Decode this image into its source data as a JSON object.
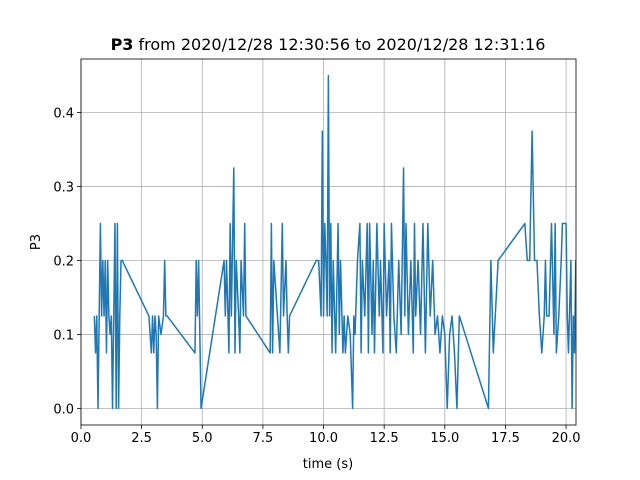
{
  "chart_data": {
    "type": "line",
    "title_parts": [
      {
        "text": "P3",
        "bold": true
      },
      {
        "text": " from 2020/12/28 12:30:56 to 2020/12/28 12:31:16",
        "bold": false
      }
    ],
    "xlabel": "time (s)",
    "ylabel": "P3",
    "xlim": [
      0,
      20.41
    ],
    "ylim": [
      -0.0225,
      0.4725
    ],
    "xticks": [
      {
        "value": 0,
        "label": "0.0"
      },
      2.5,
      {
        "value": 5,
        "label": "5.0"
      },
      7.5,
      {
        "value": 10,
        "label": "10.0"
      },
      12.5,
      {
        "value": 15,
        "label": "15.0"
      },
      17.5,
      {
        "value": 20,
        "label": "20.0"
      }
    ],
    "yticks": [
      {
        "value": 0,
        "label": "0.0"
      },
      0.1,
      0.2,
      0.3,
      0.4
    ],
    "grid": true,
    "series": [
      {
        "name": "P3",
        "color": "#1f77b4",
        "x": [
          0.55,
          0.6,
          0.65,
          0.7,
          0.75,
          0.8,
          0.85,
          0.9,
          0.95,
          1.0,
          1.05,
          1.1,
          1.15,
          1.2,
          1.25,
          1.3,
          1.35,
          1.4,
          1.45,
          1.5,
          1.55,
          1.6,
          1.65,
          1.7,
          2.8,
          2.9,
          2.95,
          3.0,
          3.05,
          3.1,
          3.15,
          3.2,
          3.3,
          3.4,
          3.45,
          3.5,
          3.55,
          4.7,
          4.75,
          4.8,
          4.85,
          4.95,
          5.9,
          5.95,
          6.0,
          6.1,
          6.15,
          6.2,
          6.3,
          6.35,
          6.4,
          6.5,
          6.55,
          6.6,
          6.7,
          6.75,
          6.8,
          7.8,
          7.85,
          7.9,
          7.95,
          8.2,
          8.3,
          8.35,
          8.45,
          8.5,
          8.55,
          8.6,
          9.7,
          9.8,
          9.9,
          9.95,
          10.0,
          10.05,
          10.1,
          10.15,
          10.2,
          10.25,
          10.3,
          10.35,
          10.4,
          10.5,
          10.6,
          10.65,
          10.7,
          10.8,
          10.85,
          10.9,
          11.0,
          11.1,
          11.2,
          11.25,
          11.3,
          11.4,
          11.5,
          11.55,
          11.6,
          11.7,
          11.8,
          11.85,
          11.9,
          12.0,
          12.05,
          12.1,
          12.2,
          12.3,
          12.35,
          12.45,
          12.5,
          12.6,
          12.7,
          12.75,
          12.8,
          12.9,
          13.0,
          13.1,
          13.2,
          13.3,
          13.35,
          13.4,
          13.5,
          13.6,
          13.7,
          13.75,
          13.8,
          13.9,
          14.0,
          14.1,
          14.2,
          14.3,
          14.4,
          14.5,
          14.6,
          14.7,
          14.8,
          14.9,
          15.0,
          15.1,
          15.2,
          15.3,
          15.4,
          15.5,
          15.6,
          16.8,
          16.9,
          17.0,
          17.2,
          18.3,
          18.4,
          18.5,
          18.6,
          18.7,
          18.8,
          18.9,
          19.0,
          19.1,
          19.15,
          19.2,
          19.3,
          19.4,
          19.5,
          19.55,
          19.6,
          19.7,
          19.8,
          19.85,
          19.9,
          20.0,
          20.05,
          20.1,
          20.2,
          20.25,
          20.3,
          20.35,
          20.4
        ],
        "values": [
          0.125,
          0.075,
          0.125,
          0.0,
          0.125,
          0.25,
          0.125,
          0.2,
          0.125,
          0.2,
          0.075,
          0.2,
          0.125,
          0.1,
          0.125,
          0.0,
          0.125,
          0.25,
          0.0,
          0.25,
          0.0,
          0.125,
          0.2,
          0.2,
          0.125,
          0.075,
          0.125,
          0.075,
          0.125,
          0.1,
          0.0,
          0.125,
          0.1,
          0.125,
          0.2,
          0.125,
          0.125,
          0.075,
          0.2,
          0.125,
          0.2,
          0.0,
          0.2,
          0.125,
          0.2,
          0.075,
          0.25,
          0.125,
          0.325,
          0.075,
          0.2,
          0.125,
          0.075,
          0.2,
          0.125,
          0.25,
          0.125,
          0.075,
          0.25,
          0.075,
          0.2,
          0.075,
          0.25,
          0.125,
          0.2,
          0.125,
          0.075,
          0.125,
          0.2,
          0.2,
          0.125,
          0.375,
          0.125,
          0.25,
          0.2,
          0.125,
          0.45,
          0.125,
          0.25,
          0.075,
          0.2,
          0.075,
          0.25,
          0.1,
          0.2,
          0.075,
          0.125,
          0.075,
          0.125,
          0.1,
          0.0,
          0.125,
          0.1,
          0.2,
          0.25,
          0.075,
          0.2,
          0.125,
          0.25,
          0.075,
          0.25,
          0.1,
          0.2,
          0.075,
          0.25,
          0.125,
          0.2,
          0.075,
          0.25,
          0.125,
          0.2,
          0.075,
          0.25,
          0.125,
          0.075,
          0.2,
          0.1,
          0.325,
          0.125,
          0.25,
          0.1,
          0.2,
          0.075,
          0.25,
          0.125,
          0.2,
          0.1,
          0.25,
          0.075,
          0.25,
          0.125,
          0.2,
          0.1,
          0.125,
          0.075,
          0.125,
          0.1,
          0.0,
          0.1,
          0.125,
          0.075,
          0.0,
          0.125,
          0.0,
          0.2,
          0.075,
          0.2,
          0.25,
          0.2,
          0.2,
          0.375,
          0.2,
          0.2,
          0.125,
          0.075,
          0.125,
          0.2,
          0.125,
          0.125,
          0.25,
          0.1,
          0.25,
          0.075,
          0.125,
          0.2,
          0.25,
          0.25,
          0.25,
          0.125,
          0.075,
          0.2,
          0.0,
          0.125,
          0.075,
          0.2
        ]
      }
    ]
  }
}
